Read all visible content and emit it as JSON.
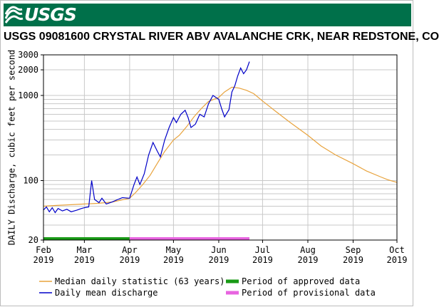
{
  "header": {
    "logo_text": "USGS",
    "title": "USGS 09081600 CRYSTAL RIVER ABV AVALANCHE CRK, NEAR REDSTONE, CO"
  },
  "chart_data": {
    "type": "line",
    "title": "USGS 09081600 CRYSTAL RIVER ABV AVALANCHE CRK, NEAR REDSTONE, CO",
    "ylabel": "DAILY Discharge, cubic feet per second",
    "xlabel": "",
    "yscale": "log",
    "ylim": [
      20,
      3000
    ],
    "xlim": [
      "2019-02-01",
      "2019-10-01"
    ],
    "grid": true,
    "y_ticks": [
      {
        "value": 3000,
        "label": "3000"
      },
      {
        "value": 2000,
        "label": "2000"
      },
      {
        "value": 1000,
        "label": "1000"
      },
      {
        "value": 100,
        "label": "100"
      },
      {
        "value": 20,
        "label": "20"
      }
    ],
    "x_ticks": [
      {
        "date": "2019-02-01",
        "month": "Feb",
        "year": "2019"
      },
      {
        "date": "2019-03-01",
        "month": "Mar",
        "year": "2019"
      },
      {
        "date": "2019-04-01",
        "month": "Apr",
        "year": "2019"
      },
      {
        "date": "2019-05-01",
        "month": "May",
        "year": "2019"
      },
      {
        "date": "2019-06-01",
        "month": "Jun",
        "year": "2019"
      },
      {
        "date": "2019-07-01",
        "month": "Jul",
        "year": "2019"
      },
      {
        "date": "2019-08-01",
        "month": "Aug",
        "year": "2019"
      },
      {
        "date": "2019-09-01",
        "month": "Sep",
        "year": "2019"
      },
      {
        "date": "2019-10-01",
        "month": "Oct",
        "year": "2019"
      }
    ],
    "series": [
      {
        "name": "Median daily statistic (63 years)",
        "color": "#e8a33d",
        "points": [
          [
            "2019-02-01",
            50
          ],
          [
            "2019-02-10",
            51
          ],
          [
            "2019-02-20",
            52
          ],
          [
            "2019-03-01",
            53
          ],
          [
            "2019-03-10",
            54
          ],
          [
            "2019-03-20",
            56
          ],
          [
            "2019-04-01",
            62
          ],
          [
            "2019-04-05",
            72
          ],
          [
            "2019-04-10",
            90
          ],
          [
            "2019-04-15",
            115
          ],
          [
            "2019-04-20",
            160
          ],
          [
            "2019-04-25",
            220
          ],
          [
            "2019-05-01",
            300
          ],
          [
            "2019-05-05",
            340
          ],
          [
            "2019-05-10",
            430
          ],
          [
            "2019-05-15",
            560
          ],
          [
            "2019-05-20",
            700
          ],
          [
            "2019-05-25",
            850
          ],
          [
            "2019-06-01",
            950
          ],
          [
            "2019-06-05",
            1100
          ],
          [
            "2019-06-10",
            1250
          ],
          [
            "2019-06-15",
            1220
          ],
          [
            "2019-06-20",
            1150
          ],
          [
            "2019-06-25",
            1050
          ],
          [
            "2019-07-01",
            860
          ],
          [
            "2019-07-10",
            650
          ],
          [
            "2019-07-20",
            480
          ],
          [
            "2019-08-01",
            340
          ],
          [
            "2019-08-10",
            255
          ],
          [
            "2019-08-20",
            200
          ],
          [
            "2019-09-01",
            158
          ],
          [
            "2019-09-10",
            130
          ],
          [
            "2019-09-20",
            110
          ],
          [
            "2019-09-25",
            102
          ],
          [
            "2019-10-01",
            95
          ]
        ]
      },
      {
        "name": "Daily mean discharge",
        "color": "#0000c8",
        "points": [
          [
            "2019-02-01",
            45
          ],
          [
            "2019-02-03",
            49
          ],
          [
            "2019-02-05",
            43
          ],
          [
            "2019-02-07",
            48
          ],
          [
            "2019-02-09",
            42
          ],
          [
            "2019-02-11",
            47
          ],
          [
            "2019-02-14",
            44
          ],
          [
            "2019-02-17",
            46
          ],
          [
            "2019-02-20",
            43
          ],
          [
            "2019-02-24",
            45
          ],
          [
            "2019-02-27",
            47
          ],
          [
            "2019-03-01",
            48
          ],
          [
            "2019-03-04",
            49
          ],
          [
            "2019-03-06",
            100
          ],
          [
            "2019-03-08",
            60
          ],
          [
            "2019-03-11",
            55
          ],
          [
            "2019-03-13",
            62
          ],
          [
            "2019-03-16",
            53
          ],
          [
            "2019-03-20",
            56
          ],
          [
            "2019-03-24",
            60
          ],
          [
            "2019-03-27",
            63
          ],
          [
            "2019-04-01",
            62
          ],
          [
            "2019-04-04",
            90
          ],
          [
            "2019-04-06",
            110
          ],
          [
            "2019-04-08",
            90
          ],
          [
            "2019-04-11",
            120
          ],
          [
            "2019-04-14",
            200
          ],
          [
            "2019-04-17",
            280
          ],
          [
            "2019-04-20",
            220
          ],
          [
            "2019-04-22",
            190
          ],
          [
            "2019-04-25",
            300
          ],
          [
            "2019-04-28",
            420
          ],
          [
            "2019-05-01",
            550
          ],
          [
            "2019-05-03",
            480
          ],
          [
            "2019-05-06",
            600
          ],
          [
            "2019-05-09",
            670
          ],
          [
            "2019-05-11",
            550
          ],
          [
            "2019-05-13",
            420
          ],
          [
            "2019-05-16",
            460
          ],
          [
            "2019-05-19",
            600
          ],
          [
            "2019-05-22",
            560
          ],
          [
            "2019-05-25",
            800
          ],
          [
            "2019-05-28",
            1000
          ],
          [
            "2019-06-01",
            900
          ],
          [
            "2019-06-03",
            700
          ],
          [
            "2019-06-05",
            560
          ],
          [
            "2019-06-08",
            680
          ],
          [
            "2019-06-10",
            1100
          ],
          [
            "2019-06-12",
            1300
          ],
          [
            "2019-06-14",
            1700
          ],
          [
            "2019-06-16",
            2100
          ],
          [
            "2019-06-18",
            1800
          ],
          [
            "2019-06-20",
            2000
          ],
          [
            "2019-06-22",
            2500
          ]
        ]
      }
    ],
    "periods": [
      {
        "name": "Period of approved data",
        "color": "#199a16",
        "start": "2019-02-01",
        "end": "2019-04-01"
      },
      {
        "name": "Period of provisional data",
        "color": "#e864e0",
        "start": "2019-04-01",
        "end": "2019-06-22"
      }
    ],
    "legend_position": "bottom"
  }
}
